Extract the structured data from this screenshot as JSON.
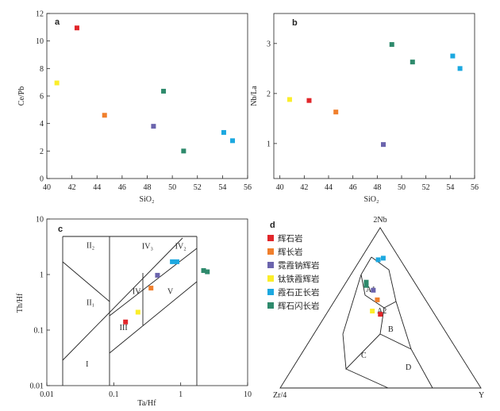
{
  "series_meta": [
    {
      "name": "辉石岩",
      "color": "#e1262a"
    },
    {
      "name": "辉长岩",
      "color": "#f07f2c"
    },
    {
      "name": "霓霞钠辉岩",
      "color": "#6b64ad"
    },
    {
      "name": "钛铁霞辉岩",
      "color": "#fbee2a"
    },
    {
      "name": "霞石正长岩",
      "color": "#1ca8e0"
    },
    {
      "name": "辉石闪长岩",
      "color": "#2e8a6c"
    }
  ],
  "chart_data": [
    {
      "type": "scatter",
      "panel_label": "a",
      "xlabel": "SiO₂",
      "ylabel": "Ce/Pb",
      "xlim": [
        40,
        56
      ],
      "ylim": [
        0,
        12
      ],
      "xticks": [
        40,
        42,
        44,
        46,
        48,
        50,
        52,
        54,
        56
      ],
      "yticks": [
        0,
        2,
        4,
        6,
        8,
        10,
        12
      ],
      "series": [
        {
          "name": "辉石岩",
          "points": [
            [
              42.4,
              10.95
            ]
          ]
        },
        {
          "name": "辉长岩",
          "points": [
            [
              44.6,
              4.6
            ]
          ]
        },
        {
          "name": "霓霞钠辉岩",
          "points": [
            [
              48.5,
              3.8
            ]
          ]
        },
        {
          "name": "钛铁霞辉岩",
          "points": [
            [
              40.8,
              6.95
            ]
          ]
        },
        {
          "name": "霞石正长岩",
          "points": [
            [
              54.1,
              3.35
            ],
            [
              54.8,
              2.75
            ]
          ]
        },
        {
          "name": "辉石闪长岩",
          "points": [
            [
              49.3,
              6.35
            ],
            [
              50.9,
              2.0
            ]
          ]
        }
      ]
    },
    {
      "type": "scatter",
      "panel_label": "b",
      "xlabel": "SiO₂",
      "ylabel": "Nb/La",
      "xlim": [
        39.5,
        56
      ],
      "ylim": [
        0.3,
        3.6
      ],
      "xticks": [
        40,
        42,
        44,
        46,
        48,
        50,
        52,
        54,
        56
      ],
      "yticks": [
        1,
        2,
        3
      ],
      "series": [
        {
          "name": "辉石岩",
          "points": [
            [
              42.4,
              1.86
            ]
          ]
        },
        {
          "name": "辉长岩",
          "points": [
            [
              44.6,
              1.63
            ]
          ]
        },
        {
          "name": "霓霞钠辉岩",
          "points": [
            [
              48.5,
              0.98
            ]
          ]
        },
        {
          "name": "钛铁霞辉岩",
          "points": [
            [
              40.8,
              1.88
            ]
          ]
        },
        {
          "name": "霞石正长岩",
          "points": [
            [
              54.2,
              2.75
            ],
            [
              54.8,
              2.5
            ]
          ]
        },
        {
          "name": "辉石闪长岩",
          "points": [
            [
              49.2,
              2.98
            ],
            [
              50.9,
              2.63
            ]
          ]
        }
      ]
    },
    {
      "type": "scatter",
      "panel_label": "c",
      "xlabel": "Ta/Hf",
      "ylabel": "Th/Hf",
      "xscale": "log",
      "yscale": "log",
      "xlim": [
        0.01,
        10
      ],
      "ylim": [
        0.01,
        10
      ],
      "xticks": [
        0.01,
        0.1,
        1,
        10
      ],
      "xtick_labels": [
        "0.01",
        "0.1",
        "1",
        "10"
      ],
      "yticks": [
        0.01,
        0.1,
        1,
        10
      ],
      "ytick_labels": [
        "0.01",
        "0.1",
        "1",
        "10"
      ],
      "fields": [
        {
          "label": "I",
          "x": 0.04,
          "y": 0.022
        },
        {
          "label": "II₁",
          "x": 0.045,
          "y": 0.28
        },
        {
          "label": "II₂",
          "x": 0.045,
          "y": 3.0
        },
        {
          "label": "III",
          "x": 0.14,
          "y": 0.1
        },
        {
          "label": "IV",
          "x": 0.22,
          "y": 0.45
        },
        {
          "label": "IV₃",
          "x": 0.32,
          "y": 2.9
        },
        {
          "label": "IV₂",
          "x": 1.0,
          "y": 2.9
        },
        {
          "label": "V",
          "x": 0.7,
          "y": 0.45
        }
      ],
      "series": [
        {
          "name": "辉石岩",
          "points": [
            [
              0.15,
              0.14
            ]
          ]
        },
        {
          "name": "辉长岩",
          "points": [
            [
              0.36,
              0.57
            ]
          ]
        },
        {
          "name": "霓霞钠辉岩",
          "points": [
            [
              0.45,
              0.97
            ]
          ]
        },
        {
          "name": "钛铁霞辉岩",
          "points": [
            [
              0.23,
              0.21
            ]
          ]
        },
        {
          "name": "霞石正长岩",
          "points": [
            [
              0.75,
              1.7
            ],
            [
              0.88,
              1.7
            ]
          ]
        },
        {
          "name": "辉石闪长岩",
          "points": [
            [
              2.2,
              1.18
            ],
            [
              2.5,
              1.12
            ]
          ]
        }
      ]
    },
    {
      "type": "ternary",
      "panel_label": "d",
      "apex_top": "2Nb",
      "apex_left": "Zr/4",
      "apex_right": "Y",
      "fields": [
        "A1",
        "A2",
        "B",
        "C",
        "D"
      ],
      "series": [
        {
          "name": "辉石岩",
          "points": [
            [
              0.46,
              0.27,
              0.27
            ]
          ]
        },
        {
          "name": "辉长岩",
          "points": [
            [
              0.55,
              0.24,
              0.21
            ]
          ]
        },
        {
          "name": "霓霞钠辉岩",
          "points": [
            [
              0.61,
              0.23,
              0.16
            ]
          ]
        },
        {
          "name": "钛铁霞辉岩",
          "points": [
            [
              0.48,
              0.3,
              0.22
            ]
          ]
        },
        {
          "name": "霞石正长岩",
          "points": [
            [
              0.8,
              0.11,
              0.09
            ],
            [
              0.81,
              0.08,
              0.11
            ]
          ]
        },
        {
          "name": "辉石闪长岩",
          "points": [
            [
              0.66,
              0.24,
              0.1
            ],
            [
              0.64,
              0.25,
              0.11
            ]
          ]
        }
      ]
    }
  ]
}
